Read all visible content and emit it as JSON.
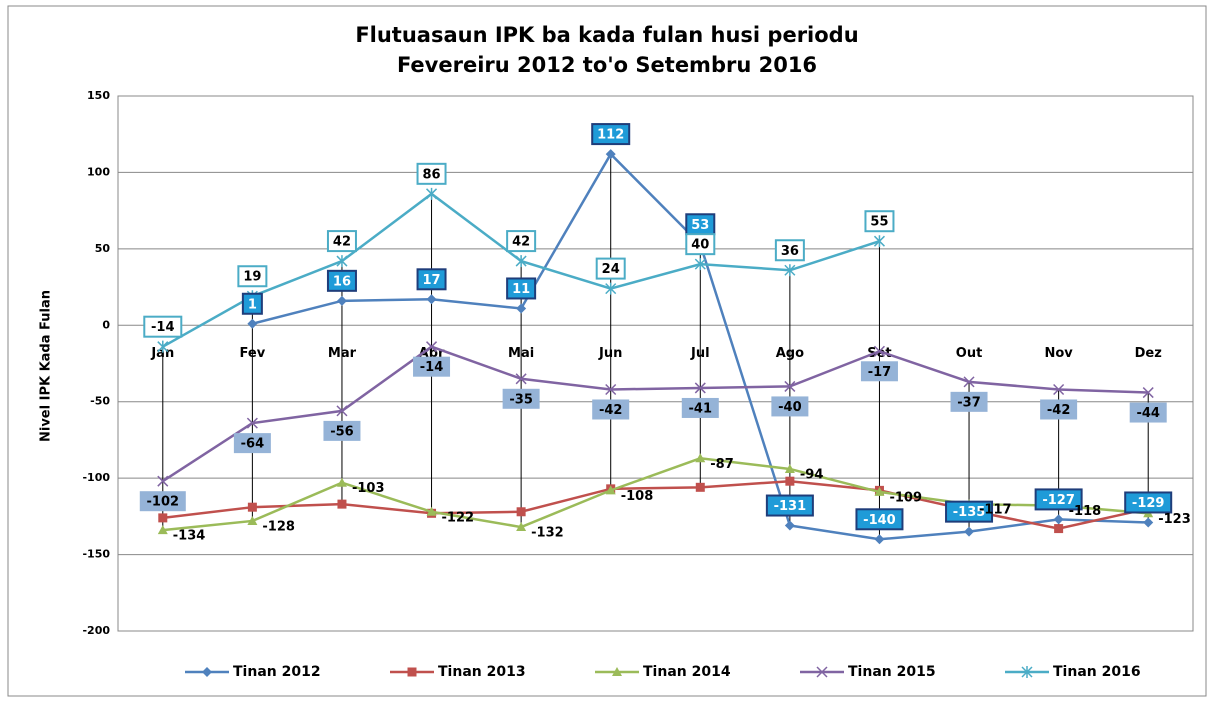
{
  "chart_data": {
    "type": "line",
    "title": [
      "Flutuasaun IPK ba kada fulan husi periodu",
      "Fevereiru 2012 to'o Setembru 2016"
    ],
    "y_label": "Nivel IPK Kada Fulan",
    "categories": [
      "Jan",
      "Fev",
      "Mar",
      "Abr",
      "Mai",
      "Jun",
      "Jul",
      "Ago",
      "Set",
      "Out",
      "Nov",
      "Dez"
    ],
    "series": [
      {
        "name": "Tinan 2012",
        "color": "#4f81bd",
        "values": [
          null,
          1,
          16,
          17,
          11,
          112,
          53,
          -131,
          -140,
          -135,
          -127,
          -129
        ]
      },
      {
        "name": "Tinan 2013",
        "color": "#c0504d",
        "values": [
          -126,
          -119,
          -117,
          -123,
          -122,
          -107,
          -106,
          -102,
          -108,
          -121,
          -133,
          -120
        ]
      },
      {
        "name": "Tinan 2014",
        "color": "#9bbb59",
        "values": [
          -134,
          -128,
          -103,
          -122,
          -132,
          -108,
          -87,
          -94,
          -109,
          -117,
          -118,
          -123
        ]
      },
      {
        "name": "Tinan 2015",
        "color": "#8064a2",
        "values": [
          -102,
          -64,
          -56,
          -14,
          -35,
          -42,
          -41,
          -40,
          -17,
          -37,
          -42,
          -44
        ]
      },
      {
        "name": "Tinan 2016",
        "color": "#4bacc6",
        "values": [
          -14,
          19,
          42,
          86,
          42,
          24,
          40,
          36,
          55,
          null,
          null,
          null
        ]
      }
    ],
    "ylim": [
      -200,
      150
    ],
    "yticks": [
      -200,
      -150,
      -100,
      -50,
      0,
      50,
      100,
      150
    ],
    "grid": true,
    "legend": "bottom"
  }
}
